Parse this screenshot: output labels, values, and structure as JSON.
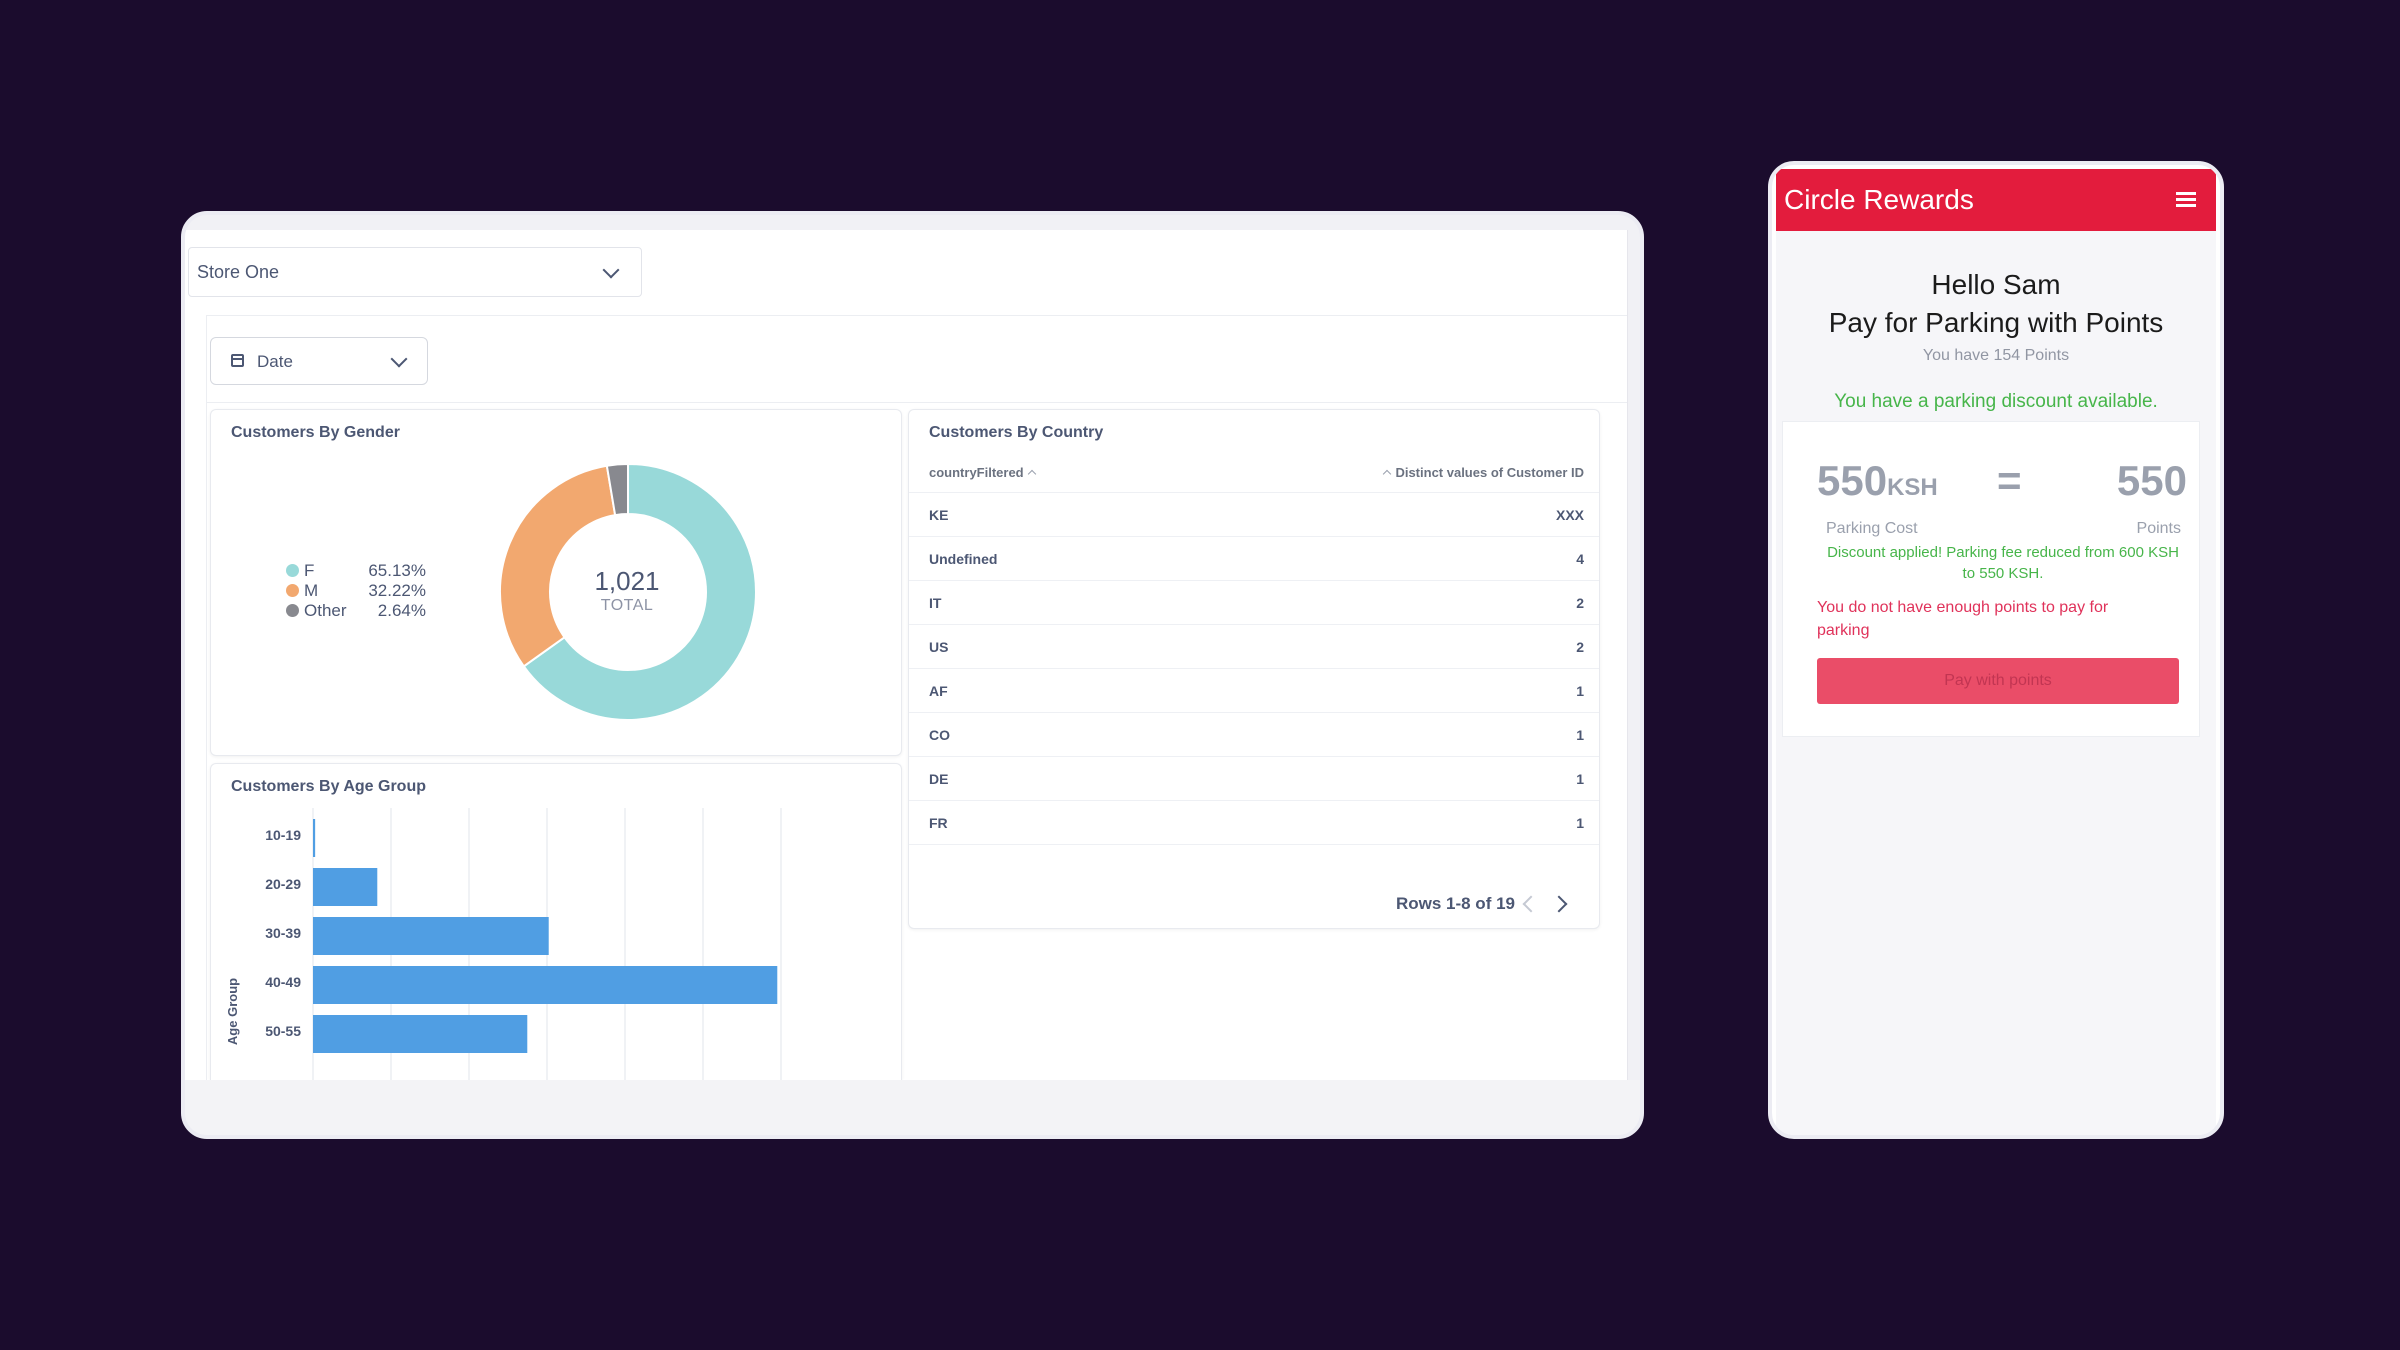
{
  "dashboard": {
    "store_select": "Store One",
    "date_filter": "Date",
    "gender_card": {
      "title": "Customers By Gender",
      "legend": [
        {
          "name": "F",
          "value": "65.13%",
          "color": "#98d9d9"
        },
        {
          "name": "M",
          "value": "32.22%",
          "color": "#f2a86f"
        },
        {
          "name": "Other",
          "value": "2.64%",
          "color": "#88898f"
        }
      ],
      "total": "1,021",
      "total_label": "TOTAL"
    },
    "age_card": {
      "title": "Customers By Age Group",
      "y_axis_title": "Age Group"
    },
    "country_card": {
      "title": "Customers By Country",
      "col_left": "countryFiltered",
      "col_right": "Distinct values of Customer ID",
      "rows": [
        {
          "country": "KE",
          "value": "XXX"
        },
        {
          "country": "Undefined",
          "value": "4"
        },
        {
          "country": "IT",
          "value": "2"
        },
        {
          "country": "US",
          "value": "2"
        },
        {
          "country": "AF",
          "value": "1"
        },
        {
          "country": "CO",
          "value": "1"
        },
        {
          "country": "DE",
          "value": "1"
        },
        {
          "country": "FR",
          "value": "1"
        }
      ],
      "pager": "Rows 1-8 of 19"
    }
  },
  "phone": {
    "app_title": "Circle Rewards",
    "hello": "Hello Sam",
    "pay_title": "Pay for Parking with Points",
    "points_line": "You have 154 Points",
    "discount_line": "You have a parking discount available.",
    "cost_value": "550",
    "cost_unit": "KSH",
    "equals": "=",
    "points_value": "550",
    "cost_caption": "Parking Cost",
    "points_caption": "Points",
    "applied_msg": "Discount applied! Parking fee reduced from 600 KSH to 550 KSH.",
    "error_msg": "You do not have enough points to pay for parking",
    "pay_button": "Pay with points",
    "accent_color": "#e31c3d"
  },
  "chart_data": [
    {
      "type": "pie",
      "title": "Customers By Gender",
      "categories": [
        "F",
        "M",
        "Other"
      ],
      "values": [
        65.13,
        32.22,
        2.64
      ]
    },
    {
      "type": "bar",
      "title": "Customers By Age Group",
      "ylabel": "Age Group",
      "categories": [
        "10-19",
        "20-29",
        "30-39",
        "40-49",
        "50-55"
      ],
      "values": [
        0.3,
        9,
        33,
        65,
        30
      ],
      "xlim": [
        0,
        70
      ]
    }
  ]
}
